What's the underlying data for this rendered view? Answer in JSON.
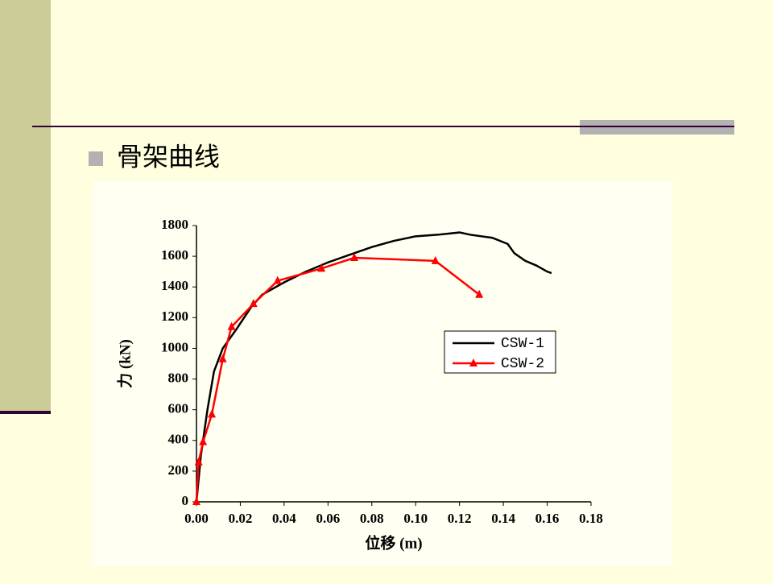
{
  "heading": "骨架曲线",
  "chart_data": {
    "type": "line",
    "xlabel": "位移 (m)",
    "ylabel": "力 (kN)",
    "xlim": [
      0,
      0.18
    ],
    "ylim": [
      0,
      1800
    ],
    "xticks": [
      {
        "value": 0,
        "label": "0.00"
      },
      {
        "value": 0.02,
        "label": "0.02"
      },
      {
        "value": 0.04,
        "label": "0.04"
      },
      {
        "value": 0.06,
        "label": "0.06"
      },
      {
        "value": 0.08,
        "label": "0.08"
      },
      {
        "value": 0.1,
        "label": "0.10"
      },
      {
        "value": 0.12,
        "label": "0.12"
      },
      {
        "value": 0.14,
        "label": "0.14"
      },
      {
        "value": 0.16,
        "label": "0.16"
      },
      {
        "value": 0.18,
        "label": "0.18"
      }
    ],
    "yticks": [
      0,
      200,
      400,
      600,
      800,
      1000,
      1200,
      1400,
      1600,
      1800
    ],
    "legend": "center-right",
    "series": [
      {
        "name": "CSW-1",
        "color": "#000000",
        "marker": "none",
        "x": [
          0,
          0.002,
          0.005,
          0.008,
          0.012,
          0.018,
          0.025,
          0.03,
          0.04,
          0.05,
          0.06,
          0.07,
          0.08,
          0.09,
          0.1,
          0.11,
          0.12,
          0.125,
          0.135,
          0.142,
          0.145,
          0.15,
          0.155,
          0.16,
          0.162
        ],
        "values": [
          0,
          300,
          600,
          850,
          1000,
          1120,
          1270,
          1350,
          1430,
          1500,
          1560,
          1610,
          1660,
          1700,
          1730,
          1740,
          1755,
          1740,
          1720,
          1680,
          1620,
          1570,
          1540,
          1500,
          1490
        ]
      },
      {
        "name": "CSW-2",
        "color": "#ff0000",
        "marker": "triangle",
        "x": [
          0,
          0.001,
          0.003,
          0.007,
          0.012,
          0.016,
          0.026,
          0.037,
          0.057,
          0.072,
          0.109,
          0.129
        ],
        "values": [
          0,
          260,
          390,
          570,
          930,
          1140,
          1290,
          1440,
          1520,
          1590,
          1570,
          1350
        ]
      }
    ]
  }
}
